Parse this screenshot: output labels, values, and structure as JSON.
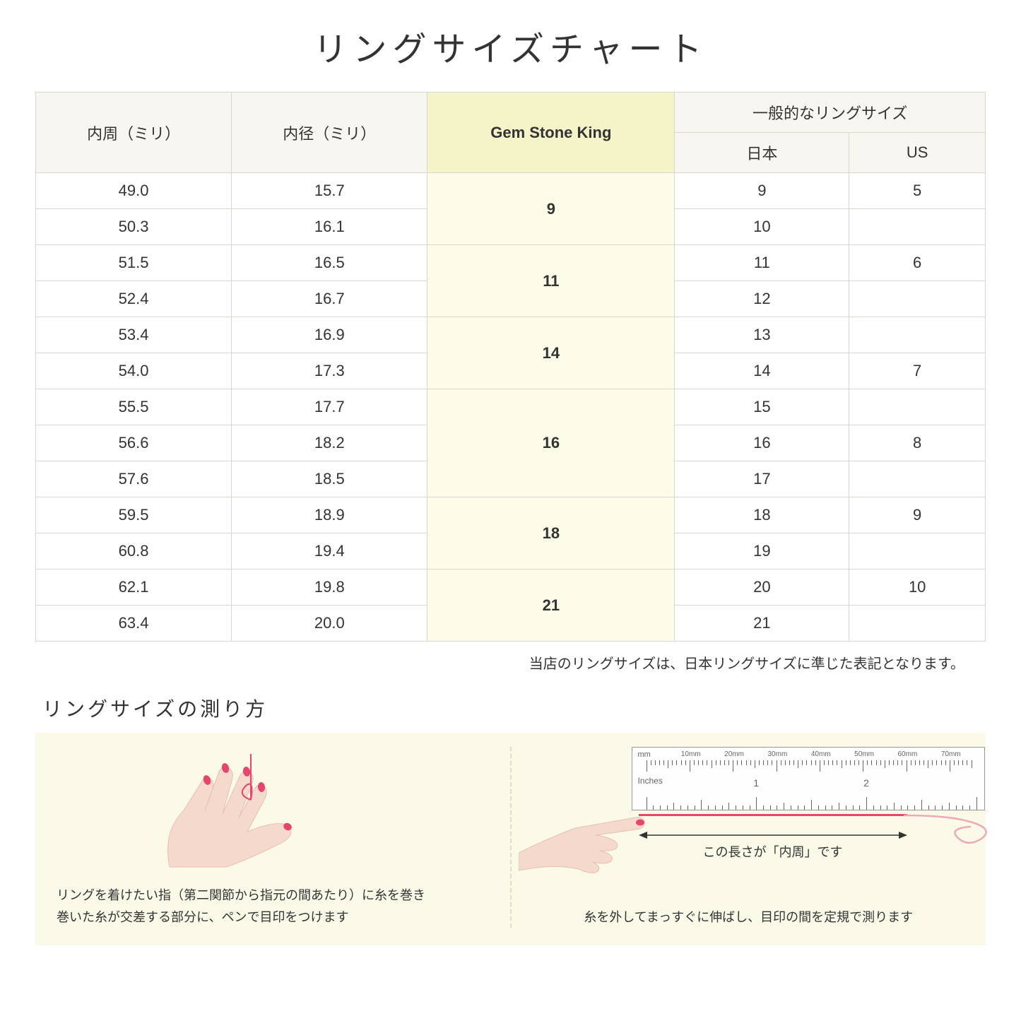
{
  "title": "リングサイズチャート",
  "table": {
    "headers": {
      "circumference": "内周（ミリ）",
      "diameter": "内径（ミリ）",
      "gsk": "Gem Stone King",
      "general_group": "一般的なリングサイズ",
      "japan": "日本",
      "us": "US"
    },
    "groups": [
      {
        "gsk": "9",
        "rows": [
          {
            "c": "49.0",
            "d": "15.7",
            "jp": "9",
            "us": "5"
          },
          {
            "c": "50.3",
            "d": "16.1",
            "jp": "10",
            "us": ""
          }
        ]
      },
      {
        "gsk": "11",
        "rows": [
          {
            "c": "51.5",
            "d": "16.5",
            "jp": "11",
            "us": "6"
          },
          {
            "c": "52.4",
            "d": "16.7",
            "jp": "12",
            "us": ""
          }
        ]
      },
      {
        "gsk": "14",
        "rows": [
          {
            "c": "53.4",
            "d": "16.9",
            "jp": "13",
            "us": ""
          },
          {
            "c": "54.0",
            "d": "17.3",
            "jp": "14",
            "us": "7"
          }
        ]
      },
      {
        "gsk": "16",
        "rows": [
          {
            "c": "55.5",
            "d": "17.7",
            "jp": "15",
            "us": ""
          },
          {
            "c": "56.6",
            "d": "18.2",
            "jp": "16",
            "us": "8"
          },
          {
            "c": "57.6",
            "d": "18.5",
            "jp": "17",
            "us": ""
          }
        ]
      },
      {
        "gsk": "18",
        "rows": [
          {
            "c": "59.5",
            "d": "18.9",
            "jp": "18",
            "us": "9"
          },
          {
            "c": "60.8",
            "d": "19.4",
            "jp": "19",
            "us": ""
          }
        ]
      },
      {
        "gsk": "21",
        "rows": [
          {
            "c": "62.1",
            "d": "19.8",
            "jp": "20",
            "us": "10"
          },
          {
            "c": "63.4",
            "d": "20.0",
            "jp": "21",
            "us": ""
          }
        ]
      }
    ],
    "header_bg": "#f7f6f0",
    "gsk_header_bg": "#f4f4c8",
    "gsk_cell_bg": "#fcfce8",
    "border_color": "#d8d8d0"
  },
  "note": "当店のリングサイズは、日本リングサイズに準じた表記となります。",
  "howto": {
    "title": "リングサイズの測り方",
    "panel_bg": "#fbfae8",
    "step1_caption": "リングを着けたい指（第二関節から指元の間あたり）に糸を巻き\n巻いた糸が交差する部分に、ペンで目印をつけます",
    "step2_caption": "糸を外してまっすぐに伸ばし、目印の間を定規で測ります",
    "length_label": "この長さが「内周」です",
    "ruler": {
      "mm_label": "mm",
      "in_label": "Inches",
      "mm_marks": [
        "10mm",
        "20mm",
        "30mm",
        "40mm",
        "50mm",
        "60mm",
        "70mm"
      ],
      "in_major": [
        "1",
        "2"
      ]
    },
    "colors": {
      "skin": "#f5d9cc",
      "nail": "#e5466e",
      "thread": "#e5466e",
      "ruler_border": "#999999",
      "tick": "#666666"
    }
  }
}
